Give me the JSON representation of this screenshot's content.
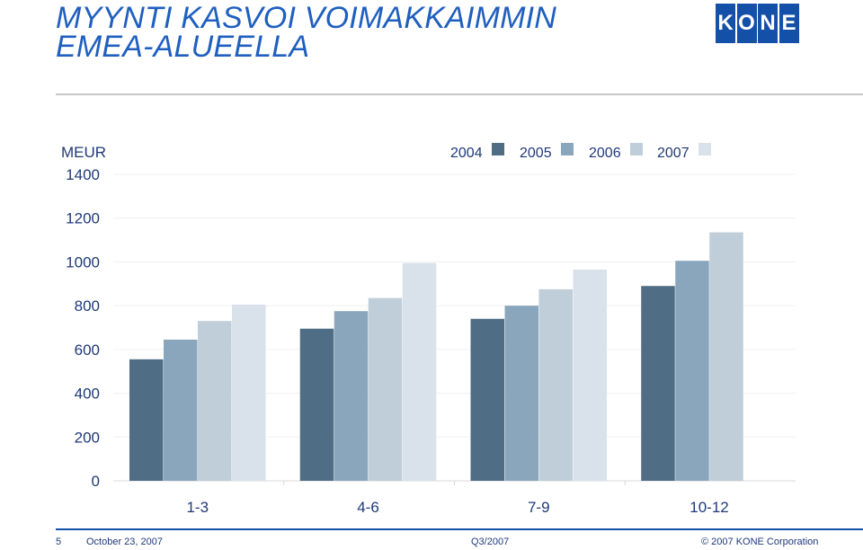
{
  "title": {
    "line1": "MYYNTI KASVOI VOIMAKKAIMMIN",
    "line2": "EMEA-ALUEELLA"
  },
  "logo": {
    "text": "KONE",
    "letters": [
      "K",
      "O",
      "N",
      "E"
    ],
    "color": "#1450a8"
  },
  "footer": {
    "page_number": "5",
    "date": "October 23, 2007",
    "period": "Q3/2007",
    "copyright": "© 2007 KONE Corporation"
  },
  "chart_data": {
    "type": "bar",
    "title": "",
    "ylabel": "MEUR",
    "xlabel": "",
    "categories": [
      "1-3",
      "4-6",
      "7-9",
      "10-12"
    ],
    "series": [
      {
        "name": "2004",
        "color": "#4f6d84",
        "values": [
          555,
          695,
          740,
          890
        ]
      },
      {
        "name": "2005",
        "color": "#8aa6bc",
        "values": [
          645,
          775,
          800,
          1005
        ]
      },
      {
        "name": "2006",
        "color": "#bfced9",
        "values": [
          730,
          835,
          875,
          1135
        ]
      },
      {
        "name": "2007",
        "color": "#d9e2ea",
        "values": [
          805,
          995,
          965,
          null
        ]
      }
    ],
    "ylim": [
      0,
      1400
    ],
    "yticks": [
      "0",
      "200",
      "400",
      "600",
      "800",
      "1000",
      "1200",
      "1400"
    ],
    "grid": true,
    "legend_position": "top-right"
  }
}
